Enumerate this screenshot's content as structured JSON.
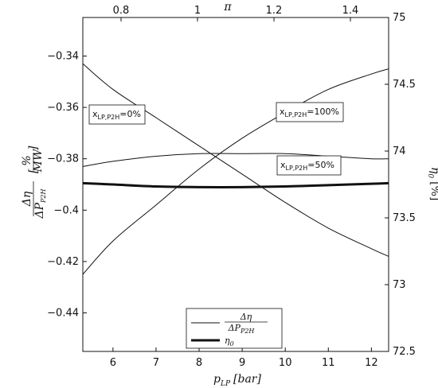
{
  "chart_data": {
    "type": "line",
    "x_axis": {
      "label_main": "p",
      "label_sub": "LP",
      "label_unit": "[bar]",
      "range": [
        5.3,
        12.4
      ],
      "ticks": [
        6,
        7,
        8,
        9,
        10,
        11,
        12
      ]
    },
    "top_axis": {
      "label": "π",
      "range": [
        0.7,
        1.5
      ],
      "ticks": [
        0.8,
        1,
        1.2,
        1.4
      ],
      "tick_labels": [
        "0.8",
        "1",
        "1.2",
        "1.4"
      ]
    },
    "y_left": {
      "label_num": "Δη",
      "label_den": "ΔP",
      "label_den_sub": "P2H",
      "label_unit_num": "%",
      "label_unit_den": "MW",
      "range": [
        -0.455,
        -0.325
      ],
      "ticks": [
        -0.44,
        -0.42,
        -0.4,
        -0.38,
        -0.36,
        -0.34
      ],
      "tick_labels": [
        "−0.44",
        "−0.42",
        "−0.4",
        "−0.38",
        "−0.36",
        "−0.34"
      ]
    },
    "y_right": {
      "label": "η",
      "label_sub": "0",
      "label_unit": "[%]",
      "range": [
        72.5,
        75
      ],
      "ticks": [
        72.5,
        73,
        73.5,
        74,
        74.5,
        75
      ],
      "tick_labels": [
        "72.5",
        "73",
        "73.5",
        "74",
        "74.5",
        "75"
      ]
    },
    "series": [
      {
        "axis": "left",
        "width": 1,
        "annotation": {
          "prefix": "x",
          "sub": "LP,P2H",
          "suffix": "=0%"
        },
        "points": [
          [
            5.3,
            -0.343
          ],
          [
            6,
            -0.353
          ],
          [
            7,
            -0.364
          ],
          [
            8,
            -0.375
          ],
          [
            9,
            -0.386
          ],
          [
            10,
            -0.397
          ],
          [
            11,
            -0.407
          ],
          [
            12,
            -0.415
          ],
          [
            12.4,
            -0.418
          ]
        ]
      },
      {
        "axis": "left",
        "width": 1,
        "annotation": {
          "prefix": "x",
          "sub": "LP,P2H",
          "suffix": "=100%"
        },
        "points": [
          [
            5.3,
            -0.425
          ],
          [
            6,
            -0.412
          ],
          [
            7,
            -0.398
          ],
          [
            8,
            -0.384
          ],
          [
            9,
            -0.372
          ],
          [
            10,
            -0.362
          ],
          [
            11,
            -0.353
          ],
          [
            12,
            -0.347
          ],
          [
            12.4,
            -0.345
          ]
        ]
      },
      {
        "axis": "left",
        "width": 1,
        "annotation": {
          "prefix": "x",
          "sub": "LP,P2H",
          "suffix": "=50%"
        },
        "points": [
          [
            5.3,
            -0.383
          ],
          [
            6,
            -0.381
          ],
          [
            7,
            -0.379
          ],
          [
            8,
            -0.378
          ],
          [
            9,
            -0.378
          ],
          [
            10,
            -0.378
          ],
          [
            11,
            -0.379
          ],
          [
            12,
            -0.38
          ],
          [
            12.4,
            -0.38
          ]
        ]
      },
      {
        "axis": "right",
        "width": 3,
        "points": [
          [
            5.3,
            73.76
          ],
          [
            6,
            73.75
          ],
          [
            7,
            73.735
          ],
          [
            8,
            73.73
          ],
          [
            9,
            73.73
          ],
          [
            10,
            73.735
          ],
          [
            11,
            73.745
          ],
          [
            12,
            73.755
          ],
          [
            12.4,
            73.76
          ]
        ]
      }
    ],
    "legend": {
      "position": "bottom-center",
      "entries": [
        {
          "num": "Δη",
          "den": "ΔP",
          "den_sub": "P2H",
          "width": 1
        },
        {
          "label": "η",
          "sub": "0",
          "width": 3
        }
      ]
    }
  }
}
